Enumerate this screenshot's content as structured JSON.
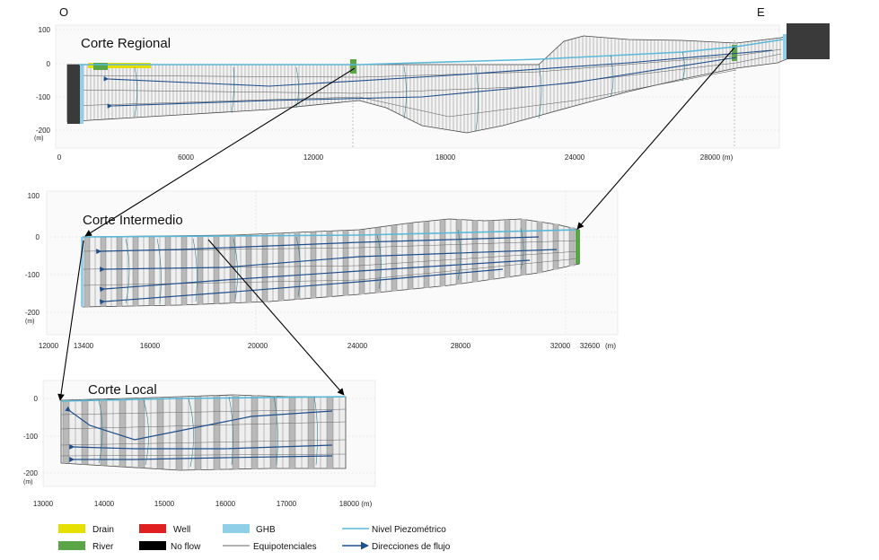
{
  "orientation": {
    "west": "O",
    "east": "E"
  },
  "panels": {
    "regional": {
      "title": "Corte Regional",
      "y_ticks": [
        "100",
        "0",
        "-100",
        "-200"
      ],
      "y_unit": "(m)",
      "x_ticks": [
        "0",
        "6000",
        "12000",
        "18000",
        "24000",
        "28000 (m)"
      ]
    },
    "intermedio": {
      "title": "Corte Intermedio",
      "y_ticks": [
        "100",
        "0",
        "-100",
        "-200"
      ],
      "y_unit": "(m)",
      "x_ticks": [
        "12000",
        "13400",
        "16000",
        "20000",
        "24000",
        "28000",
        "32000",
        "32600",
        "(m)"
      ]
    },
    "local": {
      "title": "Corte Local",
      "y_ticks": [
        "0",
        "-100",
        "-200"
      ],
      "y_unit": "(m)",
      "x_ticks": [
        "13000",
        "14000",
        "15000",
        "16000",
        "17000",
        "18000 (m)"
      ]
    }
  },
  "legend": [
    {
      "label": "Drain",
      "color": "#e5e000",
      "kind": "swatch"
    },
    {
      "label": "River",
      "color": "#5aa545",
      "kind": "swatch"
    },
    {
      "label": "Well",
      "color": "#e02020",
      "kind": "swatch"
    },
    {
      "label": "No flow",
      "color": "#000000",
      "kind": "swatch"
    },
    {
      "label": "GHB",
      "color": "#8fd0e8",
      "kind": "swatch"
    },
    {
      "label": "Equipotenciales",
      "color": "#333333",
      "kind": "thin-line"
    },
    {
      "label": "Nivel Piezométrico",
      "color": "#5bb8d8",
      "kind": "line"
    },
    {
      "label": "Direcciones de flujo",
      "color": "#1f4e8c",
      "kind": "arrow"
    }
  ]
}
